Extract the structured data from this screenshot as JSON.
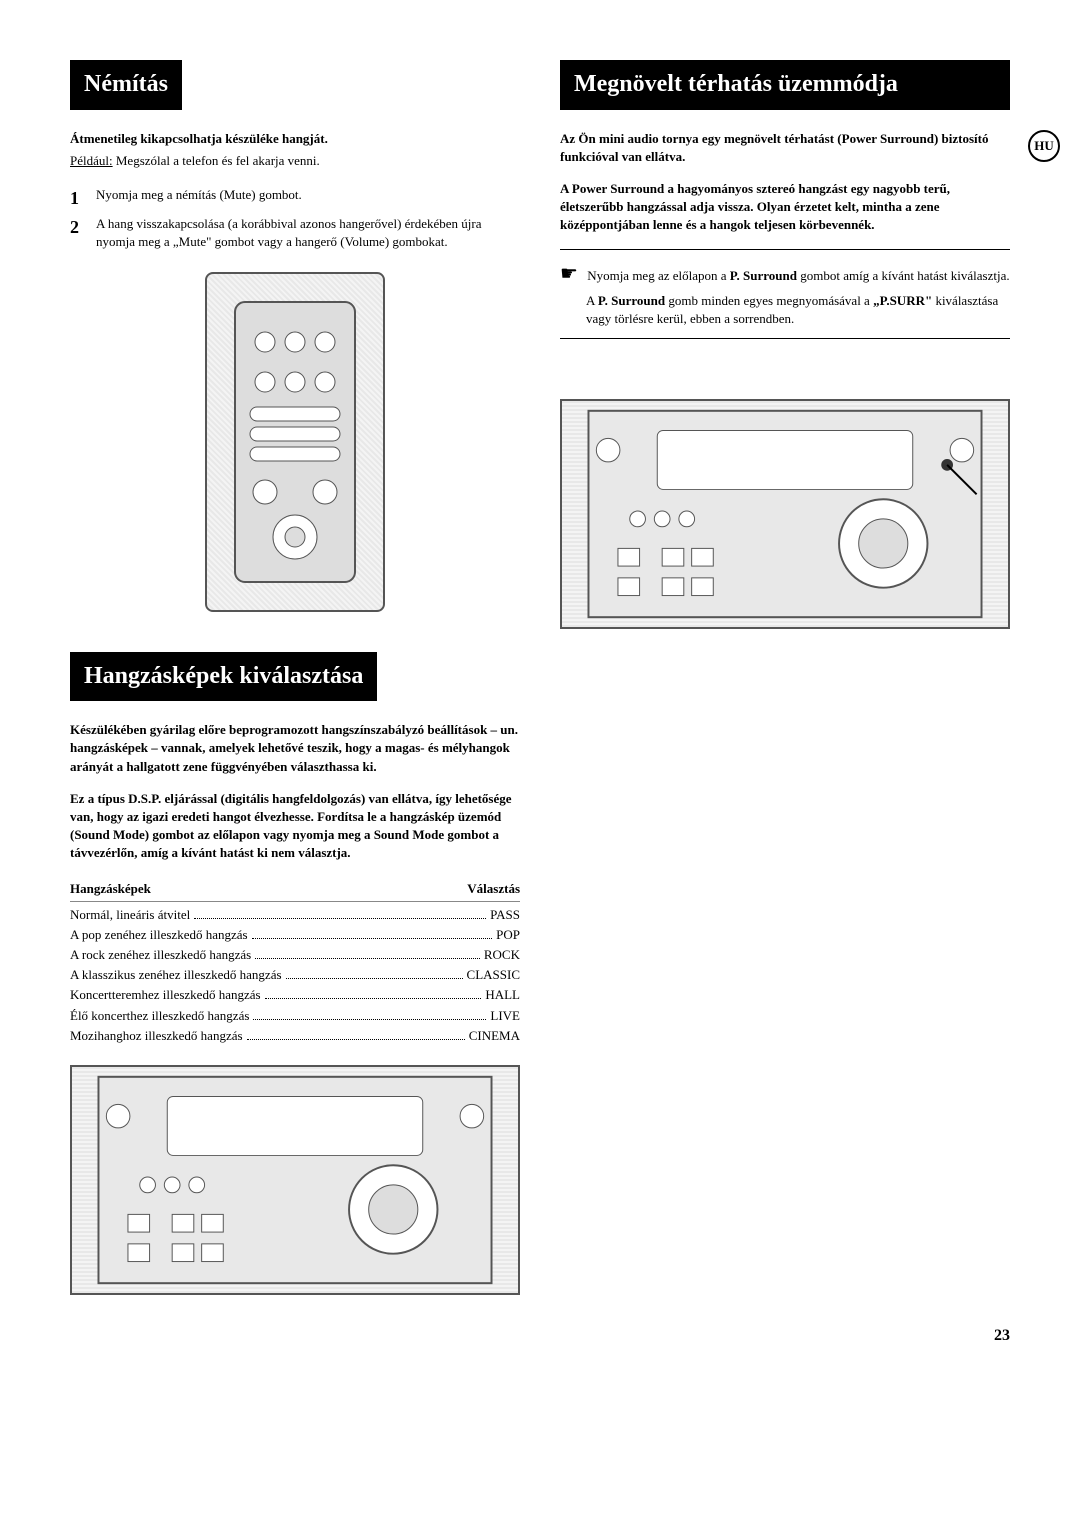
{
  "lang_badge": "HU",
  "page_number": "23",
  "left": {
    "section1": {
      "title": "Némítás",
      "intro_bold": "Átmenetileg kikapcsolhatja készüléke hangját.",
      "example_label": "Például:",
      "example_text": "Megszólal a telefon és fel akarja venni.",
      "steps": [
        {
          "num": "1",
          "text": "Nyomja meg a némítás (Mute) gombot."
        },
        {
          "num": "2",
          "text": "A hang visszakapcsolása (a korábbival azonos hangerővel) érdekében újra nyomja meg a „Mute\" gombot vagy a hangerő (Volume) gombokat."
        }
      ]
    },
    "section2": {
      "title": "Hangzásképek kiválasztása",
      "para1": "Készülékében gyárilag előre beprogramozott hangszínszabályzó beállítások – un. hangzásképek – vannak, amelyek lehetővé teszik, hogy a magas- és mélyhangok arányát a hallgatott zene függvényében választhassa ki.",
      "para2": "Ez a típus D.S.P. eljárással (digitális hangfeldolgozás) van ellátva, így lehetősége van, hogy az igazi eredeti hangot élvezhesse. Fordítsa le a hangzáskép üzemód (Sound Mode) gombot az előlapon vagy nyomja meg a Sound Mode gombot a távvezérlőn, amíg a kívánt hatást ki nem választja.",
      "table": {
        "col1": "Hangzásképek",
        "col2": "Választás",
        "rows": [
          {
            "label": "Normál, lineáris átvitel",
            "value": "PASS"
          },
          {
            "label": "A pop zenéhez illeszkedő hangzás",
            "value": "POP"
          },
          {
            "label": "A rock zenéhez illeszkedő hangzás",
            "value": "ROCK"
          },
          {
            "label": "A klasszikus zenéhez illeszkedő hangzás",
            "value": "CLASSIC"
          },
          {
            "label": "Koncertteremhez illeszkedő hangzás",
            "value": "HALL"
          },
          {
            "label": "Élő koncerthez illeszkedő hangzás",
            "value": "LIVE"
          },
          {
            "label": "Mozihanghoz illeszkedő hangzás",
            "value": "CINEMA"
          }
        ]
      }
    }
  },
  "right": {
    "section1": {
      "title": "Megnövelt térhatás üzemmódja",
      "para1": "Az Ön mini audio tornya egy megnövelt térhatást (Power Surround) biztosító funkcióval van ellátva.",
      "para2": "A Power Surround a hagyományos sztereó hangzást egy nagyobb terű, életszerűbb hangzással adja vissza. Olyan érzetet kelt, mintha a zene középpontjában lenne és a hangok teljesen körbevennék.",
      "note1_pre": "Nyomja meg az előlapon a ",
      "note1_bold": "P. Surround",
      "note1_post": " gombot amíg a kívánt hatást kiválasztja.",
      "note2_pre": "A ",
      "note2_bold1": "P. Surround",
      "note2_mid": " gomb minden egyes megnyomásával a ",
      "note2_bold2": "„P.SURR\"",
      "note2_post": " kiválasztása vagy törlésre kerül, ebben a sorrendben."
    }
  }
}
